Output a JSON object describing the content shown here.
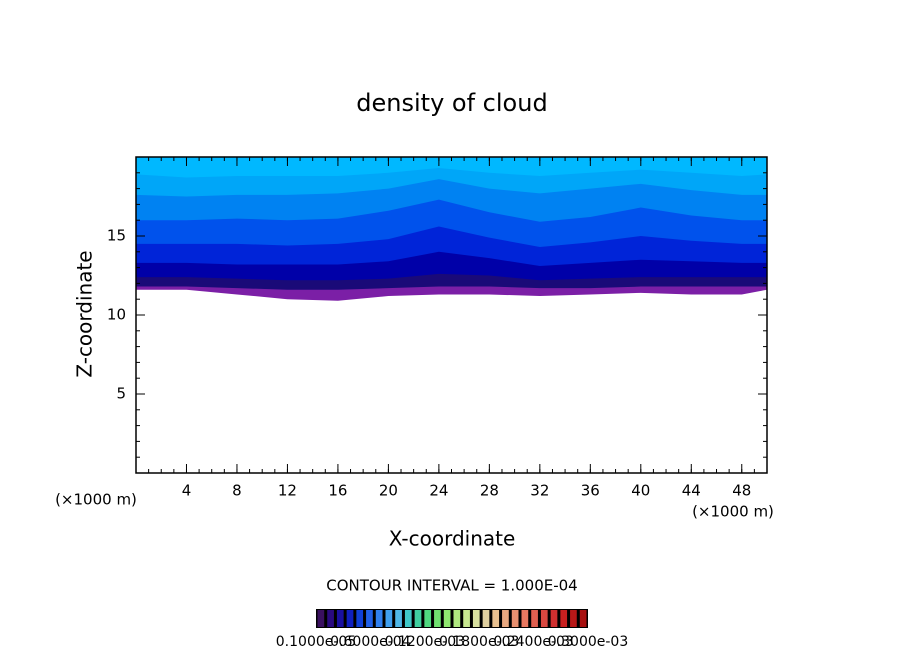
{
  "chart_data": {
    "type": "contour",
    "title": "density of cloud",
    "x_label": "X-coordinate",
    "y_label": "Z-coordinate",
    "x_unit": "(×1000 m)",
    "xlim": [
      0,
      50
    ],
    "ylim": [
      0,
      20
    ],
    "xticks": [
      4,
      8,
      12,
      16,
      20,
      24,
      28,
      32,
      36,
      40,
      44,
      48
    ],
    "yticks": [
      5,
      10,
      15
    ],
    "x": [
      0,
      4,
      8,
      12,
      16,
      20,
      24,
      28,
      32,
      36,
      40,
      44,
      48,
      50
    ],
    "contours": [
      {
        "color": "#7b1fa6",
        "z": [
          11.6,
          11.6,
          11.3,
          11.0,
          10.9,
          11.2,
          11.3,
          11.3,
          11.2,
          11.3,
          11.4,
          11.3,
          11.3,
          11.6
        ]
      },
      {
        "color": "#1a0a78",
        "z": [
          11.8,
          11.8,
          11.7,
          11.6,
          11.6,
          11.7,
          11.8,
          11.8,
          11.7,
          11.7,
          11.8,
          11.8,
          11.8,
          11.8
        ]
      },
      {
        "color": "#0000a8",
        "z": [
          12.4,
          12.4,
          12.3,
          12.2,
          12.2,
          12.3,
          12.6,
          12.5,
          12.2,
          12.3,
          12.4,
          12.4,
          12.4,
          12.4
        ]
      },
      {
        "color": "#0024d8",
        "z": [
          13.3,
          13.3,
          13.2,
          13.2,
          13.2,
          13.4,
          14.0,
          13.6,
          13.1,
          13.3,
          13.5,
          13.4,
          13.3,
          13.3
        ]
      },
      {
        "color": "#0052ec",
        "z": [
          14.5,
          14.5,
          14.5,
          14.4,
          14.5,
          14.8,
          15.6,
          14.9,
          14.3,
          14.6,
          15.0,
          14.7,
          14.5,
          14.5
        ]
      },
      {
        "color": "#0082f2",
        "z": [
          16.0,
          16.0,
          16.1,
          16.0,
          16.1,
          16.6,
          17.3,
          16.5,
          15.9,
          16.2,
          16.8,
          16.3,
          16.0,
          16.0
        ]
      },
      {
        "color": "#00a6f8",
        "z": [
          17.6,
          17.5,
          17.6,
          17.6,
          17.7,
          18.0,
          18.6,
          18.0,
          17.7,
          18.0,
          18.3,
          17.9,
          17.6,
          17.6
        ]
      },
      {
        "color": "#00b8ff",
        "z": [
          18.9,
          18.7,
          18.8,
          18.8,
          18.8,
          19.0,
          19.3,
          19.0,
          18.8,
          19.0,
          19.2,
          19.0,
          18.8,
          18.9
        ]
      }
    ],
    "annotation": "CONTOUR INTERVAL = 1.000E-04",
    "colorbar": {
      "colors": [
        "#3a1060",
        "#2a0a80",
        "#1a10a0",
        "#1020c0",
        "#1040d8",
        "#2060e8",
        "#3080f0",
        "#40a0f0",
        "#50b8e8",
        "#40c8c8",
        "#40d0a0",
        "#50d880",
        "#70e070",
        "#90e870",
        "#b0e880",
        "#c8e890",
        "#d8e0a0",
        "#e0d0a0",
        "#e8c090",
        "#e8a880",
        "#e89070",
        "#e87860",
        "#e06050",
        "#d84840",
        "#d03030",
        "#c82020",
        "#b81818",
        "#a81010"
      ],
      "labels": [
        "0.1000e-05",
        "0.6000e-04",
        "0.1200e-03",
        "0.1800e-03",
        "0.2400e-03",
        "0.3000e-03"
      ]
    }
  }
}
